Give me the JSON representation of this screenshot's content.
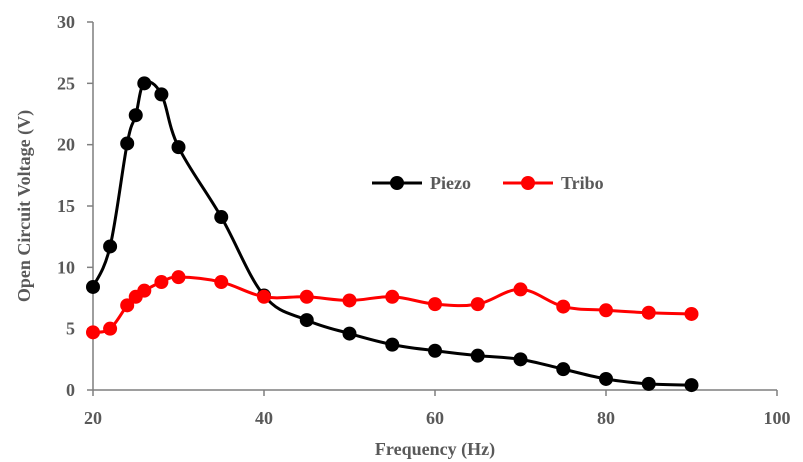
{
  "chart_data": {
    "type": "line",
    "title": "",
    "xlabel": "Frequency (Hz)",
    "ylabel": "Open Circuit Voltage (V)",
    "xlim": [
      20,
      100
    ],
    "ylim": [
      0,
      30
    ],
    "xticks": [
      20,
      40,
      60,
      80,
      100
    ],
    "yticks": [
      0,
      5,
      10,
      15,
      20,
      25,
      30
    ],
    "grid": false,
    "legend_position": "center-right",
    "series": [
      {
        "name": "Piezo",
        "color": "#000000",
        "smooth": true,
        "x": [
          20,
          22,
          24,
          25,
          26,
          28,
          30,
          35,
          40,
          45,
          50,
          55,
          60,
          65,
          70,
          75,
          80,
          85,
          90
        ],
        "y": [
          8.4,
          11.7,
          20.1,
          22.4,
          25.0,
          24.1,
          19.8,
          14.1,
          7.7,
          5.7,
          4.6,
          3.7,
          3.2,
          2.8,
          2.5,
          1.7,
          0.9,
          0.5,
          0.4
        ]
      },
      {
        "name": "Tribo",
        "color": "#ff0000",
        "smooth": true,
        "x": [
          20,
          22,
          24,
          25,
          26,
          28,
          30,
          35,
          40,
          45,
          50,
          55,
          60,
          65,
          70,
          75,
          80,
          85,
          90
        ],
        "y": [
          4.7,
          5.0,
          6.9,
          7.6,
          8.1,
          8.8,
          9.2,
          8.8,
          7.6,
          7.6,
          7.3,
          7.6,
          7.0,
          7.0,
          8.2,
          6.8,
          6.5,
          6.3,
          6.2
        ]
      }
    ]
  }
}
